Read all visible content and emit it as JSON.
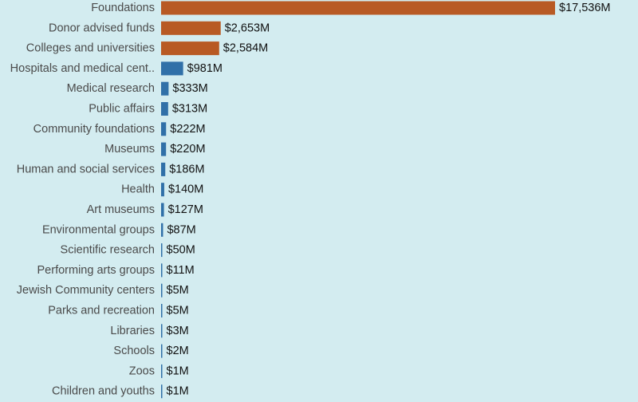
{
  "chart_data": {
    "type": "bar",
    "orientation": "horizontal",
    "title": "",
    "xlabel": "",
    "ylabel": "",
    "grid": false,
    "legend": "none",
    "value_prefix": "$",
    "value_suffix": "M",
    "xlim": [
      0,
      17536
    ],
    "colors": {
      "highlight": "#b85a24",
      "default": "#3070a8",
      "background": "#d3ecf0"
    },
    "categories": [
      "Foundations",
      "Donor advised funds",
      "Colleges and universities",
      "Hospitals and medical cent..",
      "Medical research",
      "Public affairs",
      "Community foundations",
      "Museums",
      "Human and social services",
      "Health",
      "Art museums",
      "Environmental groups",
      "Scientific research",
      "Performing arts groups",
      "Jewish Community centers",
      "Parks and recreation",
      "Libraries",
      "Schools",
      "Zoos",
      "Children and youths"
    ],
    "values": [
      17536,
      2653,
      2584,
      981,
      333,
      313,
      222,
      220,
      186,
      140,
      127,
      87,
      50,
      11,
      5,
      5,
      3,
      2,
      1,
      1
    ],
    "value_labels": [
      "$17,536M",
      "$2,653M",
      "$2,584M",
      "$981M",
      "$333M",
      "$313M",
      "$222M",
      "$220M",
      "$186M",
      "$140M",
      "$127M",
      "$87M",
      "$50M",
      "$11M",
      "$5M",
      "$5M",
      "$3M",
      "$2M",
      "$1M",
      "$1M"
    ],
    "highlighted": [
      true,
      true,
      true,
      false,
      false,
      false,
      false,
      false,
      false,
      false,
      false,
      false,
      false,
      false,
      false,
      false,
      false,
      false,
      false,
      false
    ]
  }
}
